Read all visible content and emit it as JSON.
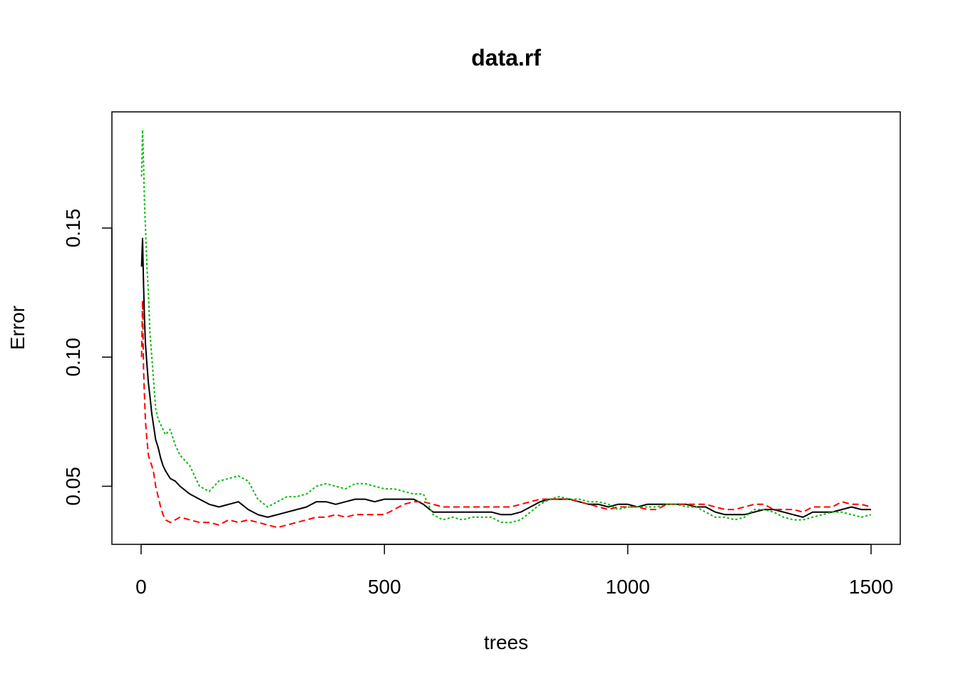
{
  "chart_data": {
    "type": "line",
    "title": "data.rf",
    "xlabel": "trees",
    "ylabel": "Error",
    "xlim": [
      -60,
      1560
    ],
    "ylim": [
      0.0275,
      0.195
    ],
    "xticks": [
      0,
      500,
      1000,
      1500
    ],
    "xtick_labels": [
      "0",
      "500",
      "1000",
      "1500"
    ],
    "yticks": [
      0.05,
      0.1,
      0.15
    ],
    "ytick_labels": [
      "0.05",
      "0.10",
      "0.15"
    ],
    "grid": false,
    "series": [
      {
        "color": "#000000",
        "dash": "",
        "x": [
          1,
          3,
          5,
          7,
          9,
          12,
          15,
          18,
          22,
          26,
          30,
          35,
          40,
          45,
          50,
          60,
          70,
          80,
          100,
          120,
          140,
          160,
          180,
          200,
          220,
          240,
          260,
          280,
          300,
          320,
          340,
          360,
          380,
          400,
          420,
          440,
          460,
          480,
          500,
          520,
          540,
          560,
          580,
          600,
          620,
          640,
          660,
          680,
          700,
          720,
          740,
          760,
          780,
          800,
          820,
          840,
          860,
          880,
          900,
          920,
          940,
          960,
          980,
          1000,
          1020,
          1040,
          1060,
          1080,
          1100,
          1120,
          1140,
          1160,
          1180,
          1200,
          1220,
          1240,
          1260,
          1280,
          1300,
          1320,
          1340,
          1360,
          1380,
          1400,
          1420,
          1440,
          1460,
          1480,
          1500
        ],
        "y": [
          0.135,
          0.146,
          0.128,
          0.115,
          0.105,
          0.097,
          0.09,
          0.085,
          0.078,
          0.073,
          0.068,
          0.065,
          0.061,
          0.058,
          0.056,
          0.053,
          0.052,
          0.05,
          0.047,
          0.045,
          0.043,
          0.042,
          0.043,
          0.044,
          0.041,
          0.039,
          0.038,
          0.039,
          0.04,
          0.041,
          0.042,
          0.044,
          0.044,
          0.043,
          0.044,
          0.045,
          0.045,
          0.044,
          0.045,
          0.045,
          0.045,
          0.045,
          0.043,
          0.04,
          0.04,
          0.04,
          0.04,
          0.04,
          0.04,
          0.04,
          0.039,
          0.039,
          0.04,
          0.042,
          0.044,
          0.045,
          0.045,
          0.045,
          0.044,
          0.043,
          0.043,
          0.042,
          0.043,
          0.043,
          0.042,
          0.043,
          0.043,
          0.043,
          0.043,
          0.043,
          0.042,
          0.042,
          0.04,
          0.039,
          0.039,
          0.039,
          0.04,
          0.041,
          0.041,
          0.04,
          0.039,
          0.038,
          0.04,
          0.04,
          0.04,
          0.041,
          0.042,
          0.041,
          0.041
        ]
      },
      {
        "color": "#ff0000",
        "dash": "9,5",
        "x": [
          1,
          3,
          5,
          7,
          9,
          12,
          15,
          18,
          22,
          26,
          30,
          35,
          40,
          45,
          50,
          60,
          70,
          80,
          100,
          120,
          140,
          160,
          180,
          200,
          220,
          240,
          260,
          280,
          300,
          320,
          340,
          360,
          380,
          400,
          420,
          440,
          460,
          480,
          500,
          520,
          540,
          560,
          580,
          600,
          620,
          640,
          660,
          680,
          700,
          720,
          740,
          760,
          780,
          800,
          820,
          840,
          860,
          880,
          900,
          920,
          940,
          960,
          980,
          1000,
          1020,
          1040,
          1060,
          1080,
          1100,
          1120,
          1140,
          1160,
          1180,
          1200,
          1220,
          1240,
          1260,
          1280,
          1300,
          1320,
          1340,
          1360,
          1380,
          1400,
          1420,
          1440,
          1460,
          1480,
          1500
        ],
        "y": [
          0.1,
          0.122,
          0.095,
          0.085,
          0.075,
          0.068,
          0.062,
          0.06,
          0.058,
          0.055,
          0.05,
          0.046,
          0.042,
          0.039,
          0.037,
          0.036,
          0.037,
          0.038,
          0.037,
          0.036,
          0.036,
          0.035,
          0.037,
          0.036,
          0.037,
          0.036,
          0.035,
          0.034,
          0.035,
          0.036,
          0.037,
          0.038,
          0.038,
          0.039,
          0.038,
          0.039,
          0.039,
          0.039,
          0.039,
          0.041,
          0.043,
          0.044,
          0.044,
          0.043,
          0.042,
          0.042,
          0.042,
          0.042,
          0.042,
          0.042,
          0.042,
          0.042,
          0.043,
          0.044,
          0.045,
          0.045,
          0.045,
          0.045,
          0.044,
          0.043,
          0.042,
          0.041,
          0.042,
          0.042,
          0.042,
          0.041,
          0.041,
          0.043,
          0.043,
          0.043,
          0.043,
          0.043,
          0.042,
          0.041,
          0.041,
          0.042,
          0.043,
          0.043,
          0.041,
          0.041,
          0.041,
          0.04,
          0.042,
          0.042,
          0.042,
          0.044,
          0.043,
          0.043,
          0.042
        ]
      },
      {
        "color": "#00bb00",
        "dash": "3,3",
        "x": [
          1,
          3,
          5,
          7,
          9,
          12,
          15,
          18,
          22,
          26,
          30,
          35,
          40,
          45,
          50,
          60,
          70,
          80,
          100,
          120,
          140,
          160,
          180,
          200,
          220,
          240,
          260,
          280,
          300,
          320,
          340,
          360,
          380,
          400,
          420,
          440,
          460,
          480,
          500,
          520,
          540,
          560,
          580,
          600,
          620,
          640,
          660,
          680,
          700,
          720,
          740,
          760,
          780,
          800,
          820,
          840,
          860,
          880,
          900,
          920,
          940,
          960,
          980,
          1000,
          1020,
          1040,
          1060,
          1080,
          1100,
          1120,
          1140,
          1160,
          1180,
          1200,
          1220,
          1240,
          1260,
          1280,
          1300,
          1320,
          1340,
          1360,
          1380,
          1400,
          1420,
          1440,
          1460,
          1480,
          1500
        ],
        "y": [
          0.17,
          0.188,
          0.175,
          0.16,
          0.15,
          0.135,
          0.125,
          0.11,
          0.1,
          0.09,
          0.08,
          0.076,
          0.074,
          0.072,
          0.07,
          0.072,
          0.066,
          0.062,
          0.058,
          0.05,
          0.048,
          0.052,
          0.053,
          0.054,
          0.052,
          0.045,
          0.042,
          0.044,
          0.046,
          0.046,
          0.047,
          0.05,
          0.051,
          0.05,
          0.049,
          0.051,
          0.051,
          0.05,
          0.049,
          0.049,
          0.048,
          0.047,
          0.047,
          0.039,
          0.037,
          0.038,
          0.037,
          0.038,
          0.038,
          0.038,
          0.036,
          0.036,
          0.037,
          0.04,
          0.043,
          0.045,
          0.046,
          0.045,
          0.045,
          0.044,
          0.044,
          0.043,
          0.041,
          0.042,
          0.042,
          0.042,
          0.042,
          0.043,
          0.043,
          0.042,
          0.042,
          0.04,
          0.038,
          0.038,
          0.037,
          0.038,
          0.041,
          0.041,
          0.04,
          0.038,
          0.037,
          0.037,
          0.038,
          0.039,
          0.04,
          0.04,
          0.039,
          0.038,
          0.039
        ]
      }
    ]
  }
}
